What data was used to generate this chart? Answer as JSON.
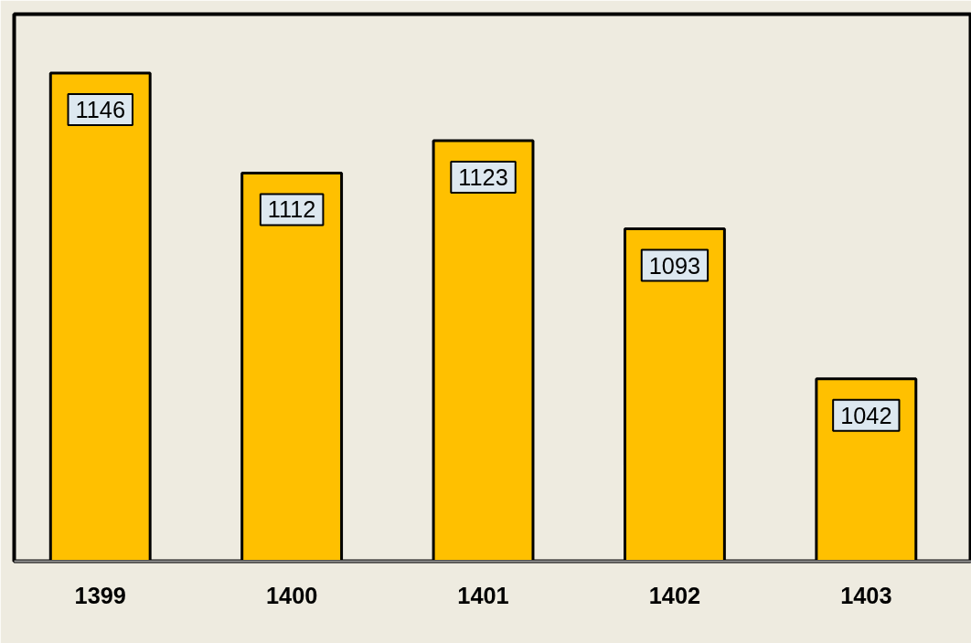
{
  "chart_data": {
    "type": "bar",
    "categories": [
      "1399",
      "1400",
      "1401",
      "1402",
      "1403"
    ],
    "values": [
      1146,
      1112,
      1123,
      1093,
      1042
    ],
    "color": "#ffc000",
    "ylim": [
      980,
      1166
    ],
    "data_labels": true
  }
}
